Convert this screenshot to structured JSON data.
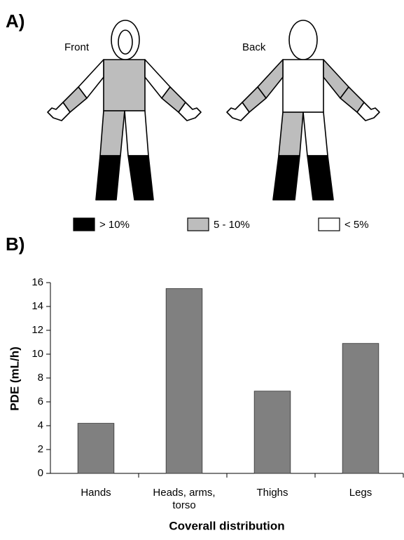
{
  "panel_a": {
    "label": "A)",
    "views": [
      "Front",
      "Back"
    ],
    "legend": [
      {
        "label": "> 10%",
        "color": "#000000"
      },
      {
        "label": "5 - 10%",
        "color": "#bdbdbd"
      },
      {
        "label": "< 5%",
        "color": "#ffffff"
      }
    ]
  },
  "chart_data": {
    "type": "bar",
    "panel_label": "B)",
    "xlabel": "Coverall distribution",
    "ylabel": "PDE (mL/h)",
    "categories": [
      "Hands",
      "Heads, arms, torso",
      "Thighs",
      "Legs"
    ],
    "values": [
      4.2,
      15.5,
      6.9,
      10.9
    ],
    "color": "#808080",
    "ylim": [
      0,
      16
    ],
    "yticks": [
      0,
      2,
      4,
      6,
      8,
      10,
      12,
      14,
      16
    ]
  }
}
